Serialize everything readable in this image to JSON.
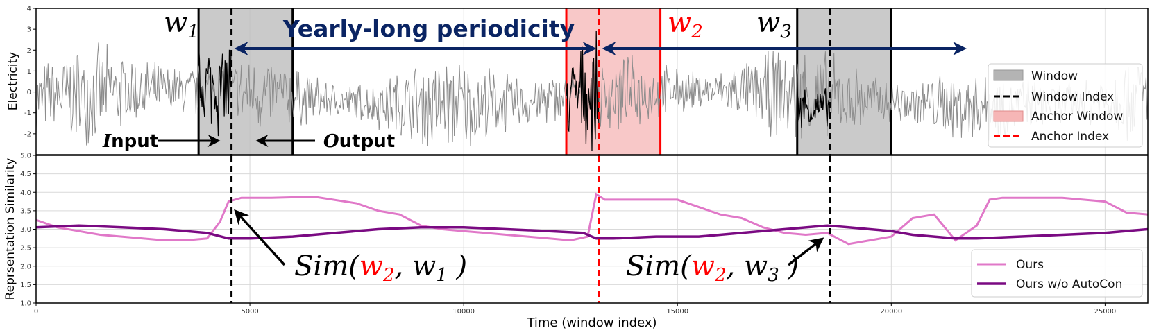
{
  "chart_data": [
    {
      "type": "line",
      "panel": "top",
      "ylabel": "Electricity",
      "ylim": [
        -3,
        4
      ],
      "yticks": [
        -2,
        -1,
        0,
        1,
        2,
        3,
        4
      ],
      "xlim": [
        0,
        26000
      ],
      "series": [
        {
          "name": "Electricity",
          "color": "#8c8c8c",
          "style": "noisy-signal",
          "x_range": [
            0,
            26000
          ]
        },
        {
          "name": "Input segment w1",
          "color": "#000000",
          "x_range": [
            3800,
            4570
          ]
        },
        {
          "name": "Input segment w2",
          "color": "#000000",
          "x_range": [
            12400,
            13170
          ]
        },
        {
          "name": "Input segment w3",
          "color": "#000000",
          "x_range": [
            17800,
            18570
          ]
        }
      ],
      "windows": [
        {
          "name": "w1",
          "kind": "Window",
          "x_start": 3800,
          "x_end": 6000,
          "index": 4570
        },
        {
          "name": "w2",
          "kind": "Anchor Window",
          "x_start": 12400,
          "x_end": 14600,
          "index": 13170
        },
        {
          "name": "w3",
          "kind": "Window",
          "x_start": 17800,
          "x_end": 20000,
          "index": 18570
        }
      ],
      "annotations": {
        "periodicity": "Yearly-long periodicity",
        "arrow_left_x": [
          4570,
          13170
        ],
        "arrow_right_x": [
          13170,
          21700
        ],
        "input_label": "Input",
        "output_label": "Output",
        "input_letter": "I",
        "input_rest": "nput",
        "output_letter": "O",
        "output_rest": "utput"
      },
      "window_labels": {
        "w1_base": "w",
        "w1_sub": "1",
        "w2_base": "w",
        "w2_sub": "2",
        "w3_base": "w",
        "w3_sub": "3"
      },
      "legend": {
        "position": "right",
        "items": [
          {
            "label": "Window",
            "kind": "patch",
            "color": "#b4b4b4"
          },
          {
            "label": "Window Index",
            "kind": "dashed",
            "color": "#000000"
          },
          {
            "label": "Anchor Window",
            "kind": "patch",
            "color": "#f6b6b6"
          },
          {
            "label": "Anchor Index",
            "kind": "dashed",
            "color": "#ff0000"
          }
        ]
      }
    },
    {
      "type": "line",
      "panel": "bottom",
      "ylabel": "Reprsentation Similarity",
      "xlabel": "Time (window index)",
      "ylim": [
        1.0,
        5.0
      ],
      "yticks": [
        1.0,
        1.5,
        2.0,
        2.5,
        3.0,
        3.5,
        4.0,
        4.5,
        5.0
      ],
      "ytick_labels": [
        "1.0",
        "1.5",
        "2.0",
        "2.5",
        "3.0",
        "3.5",
        "4.0",
        "4.5",
        "5.0"
      ],
      "xlim": [
        0,
        26000
      ],
      "xticks": [
        0,
        5000,
        10000,
        15000,
        20000,
        25000
      ],
      "xtick_labels": [
        "0",
        "5000",
        "10000",
        "15000",
        "20000",
        "25000"
      ],
      "grid": true,
      "series": [
        {
          "name": "Ours",
          "color": "#e078c8",
          "x": [
            0,
            500,
            1000,
            1500,
            2000,
            2500,
            3000,
            3500,
            4000,
            4300,
            4500,
            4800,
            5500,
            6500,
            7500,
            8000,
            8500,
            9000,
            9500,
            10000,
            10500,
            11000,
            11500,
            12000,
            12500,
            12900,
            13100,
            13300,
            14000,
            15000,
            16000,
            16500,
            17000,
            17500,
            18000,
            18500,
            19000,
            19500,
            20000,
            20500,
            21000,
            21500,
            22000,
            22300,
            22600,
            23000,
            24000,
            25000,
            25500,
            26000
          ],
          "y": [
            3.25,
            3.05,
            2.95,
            2.85,
            2.8,
            2.75,
            2.7,
            2.7,
            2.75,
            3.2,
            3.75,
            3.85,
            3.85,
            3.88,
            3.7,
            3.5,
            3.4,
            3.1,
            3.0,
            2.95,
            2.9,
            2.85,
            2.8,
            2.75,
            2.7,
            2.8,
            3.95,
            3.8,
            3.8,
            3.8,
            3.4,
            3.3,
            3.05,
            2.9,
            2.85,
            2.9,
            2.6,
            2.7,
            2.8,
            3.3,
            3.4,
            2.7,
            3.1,
            3.8,
            3.85,
            3.85,
            3.85,
            3.75,
            3.45,
            3.4
          ]
        },
        {
          "name": "Ours w/o AutoCon",
          "color": "#7a0a82",
          "x": [
            0,
            1000,
            2000,
            3000,
            4000,
            4500,
            5000,
            6000,
            7000,
            8000,
            9000,
            10000,
            11000,
            12000,
            12800,
            13100,
            13500,
            14500,
            15500,
            16500,
            17500,
            18500,
            19000,
            19500,
            20000,
            20500,
            21000,
            21500,
            22000,
            23000,
            24000,
            25000,
            26000
          ],
          "y": [
            3.05,
            3.1,
            3.05,
            3.0,
            2.9,
            2.75,
            2.75,
            2.8,
            2.9,
            3.0,
            3.05,
            3.05,
            3.0,
            2.95,
            2.9,
            2.75,
            2.75,
            2.8,
            2.8,
            2.9,
            3.0,
            3.1,
            3.05,
            3.0,
            2.95,
            2.85,
            2.8,
            2.75,
            2.75,
            2.8,
            2.85,
            2.9,
            3.0
          ]
        }
      ],
      "index_lines": [
        {
          "x": 4570,
          "color": "#000000"
        },
        {
          "x": 13170,
          "color": "#ff0000"
        },
        {
          "x": 18570,
          "color": "#000000"
        }
      ],
      "annotations": {
        "sim1_prefix": "Sim(",
        "sim1_anchor": "w",
        "sim1_anchor_sub": "2",
        "sim1_mid": ", ",
        "sim1_other": "w",
        "sim1_other_sub": "1",
        "sim1_suffix": " )",
        "sim2_prefix": "Sim(",
        "sim2_anchor": "w",
        "sim2_anchor_sub": "2",
        "sim2_mid": ", ",
        "sim2_other": "w",
        "sim2_other_sub": "3",
        "sim2_suffix": " )"
      },
      "legend": {
        "position": "bottom-right",
        "items": [
          {
            "label": "Ours",
            "color": "#e078c8"
          },
          {
            "label": "Ours w/o AutoCon",
            "color": "#7a0a82"
          }
        ]
      }
    }
  ]
}
